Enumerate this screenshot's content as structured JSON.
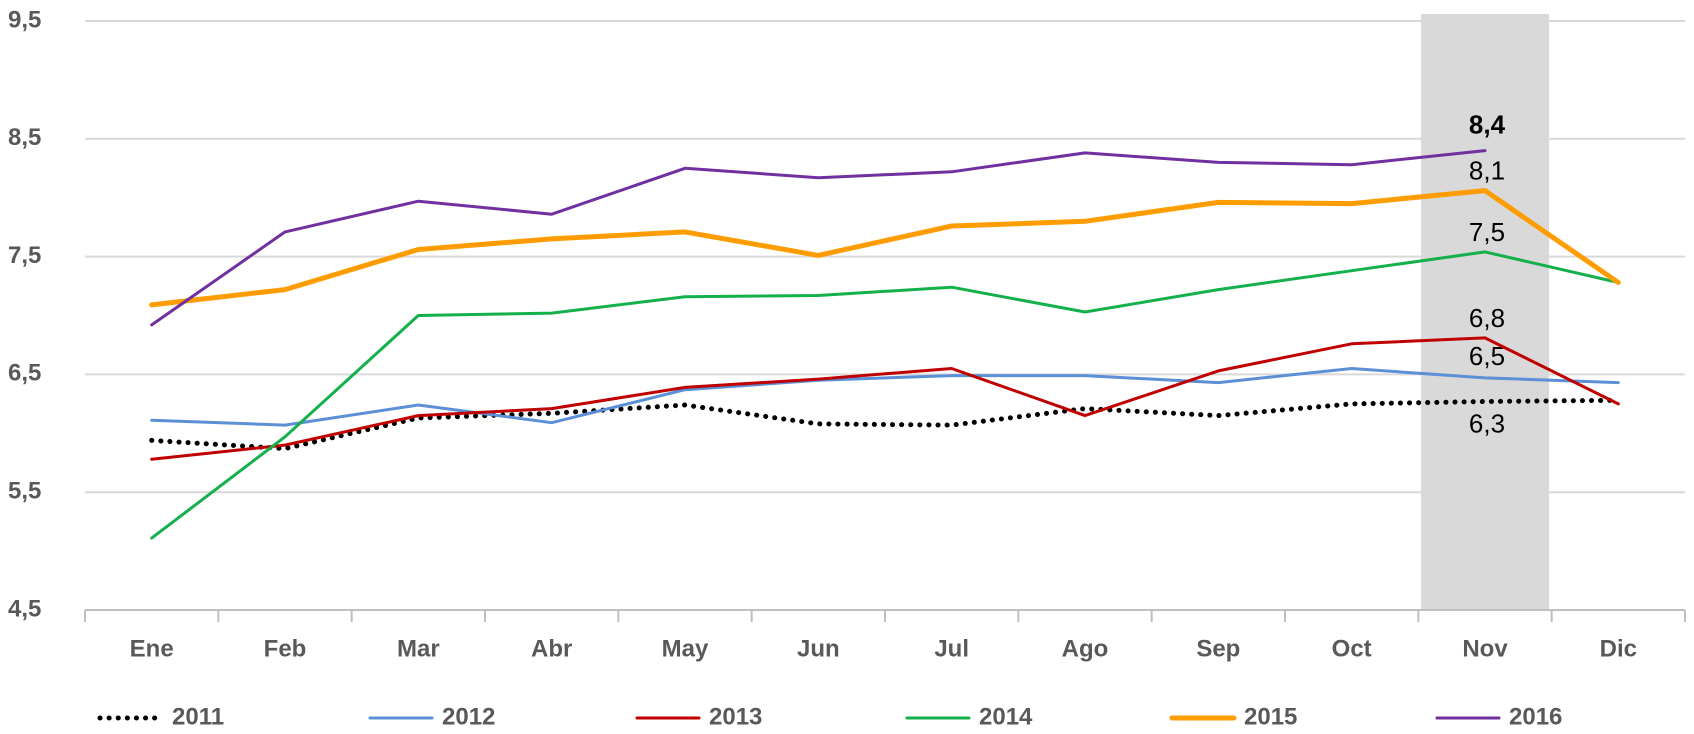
{
  "chart_data": {
    "type": "line",
    "categories": [
      "Ene",
      "Feb",
      "Mar",
      "Abr",
      "May",
      "Jun",
      "Jul",
      "Ago",
      "Sep",
      "Oct",
      "Nov",
      "Dic"
    ],
    "ylim": [
      4.5,
      9.5
    ],
    "yticks": [
      {
        "value": 4.5,
        "label": "4,5"
      },
      {
        "value": 5.5,
        "label": "5,5"
      },
      {
        "value": 6.5,
        "label": "6,5"
      },
      {
        "value": 7.5,
        "label": "7,5"
      },
      {
        "value": 8.5,
        "label": "8,5"
      },
      {
        "value": 9.5,
        "label": "9,5"
      }
    ],
    "grid": true,
    "legend": "bottom",
    "series": [
      {
        "name": "2011",
        "color": "#000000",
        "style": "dotted",
        "linewidth": 5,
        "values": [
          5.94,
          5.87,
          6.13,
          6.17,
          6.24,
          6.08,
          6.07,
          6.21,
          6.15,
          6.25,
          6.27,
          6.28
        ],
        "value_labels": [
          null,
          null,
          null,
          null,
          null,
          null,
          null,
          null,
          null,
          null,
          "6,3",
          null
        ]
      },
      {
        "name": "2012",
        "color": "#5b8fd6",
        "style": "solid",
        "linewidth": 3,
        "values": [
          6.11,
          6.07,
          6.24,
          6.09,
          6.37,
          6.45,
          6.49,
          6.49,
          6.43,
          6.55,
          6.47,
          6.43
        ],
        "value_labels": [
          null,
          null,
          null,
          null,
          null,
          null,
          null,
          null,
          null,
          null,
          "6,5",
          null
        ]
      },
      {
        "name": "2013",
        "color": "#c00000",
        "style": "solid",
        "linewidth": 3,
        "values": [
          5.78,
          5.9,
          6.15,
          6.21,
          6.39,
          6.46,
          6.55,
          6.15,
          6.53,
          6.76,
          6.81,
          6.25
        ],
        "value_labels": [
          null,
          null,
          null,
          null,
          null,
          null,
          null,
          null,
          null,
          null,
          "6,8",
          null
        ]
      },
      {
        "name": "2014",
        "color": "#13b04c",
        "style": "solid",
        "linewidth": 3,
        "values": [
          5.11,
          5.97,
          7.0,
          7.02,
          7.16,
          7.17,
          7.24,
          7.03,
          7.22,
          7.38,
          7.54,
          7.28
        ],
        "value_labels": [
          null,
          null,
          null,
          null,
          null,
          null,
          null,
          null,
          null,
          null,
          "7,5",
          null
        ]
      },
      {
        "name": "2015",
        "color": "#ff9c00",
        "style": "solid",
        "linewidth": 5,
        "values": [
          7.09,
          7.22,
          7.56,
          7.65,
          7.71,
          7.51,
          7.76,
          7.8,
          7.96,
          7.95,
          8.06,
          7.28
        ],
        "value_labels": [
          null,
          null,
          null,
          null,
          null,
          null,
          null,
          null,
          null,
          null,
          "8,1",
          null
        ]
      },
      {
        "name": "2016",
        "color": "#7030a0",
        "style": "solid",
        "linewidth": 3,
        "values": [
          6.92,
          7.71,
          7.97,
          7.86,
          8.25,
          8.17,
          8.22,
          8.38,
          8.3,
          8.28,
          8.4,
          null
        ],
        "value_labels": [
          null,
          null,
          null,
          null,
          null,
          null,
          null,
          null,
          null,
          null,
          "8,4",
          null
        ]
      }
    ]
  }
}
